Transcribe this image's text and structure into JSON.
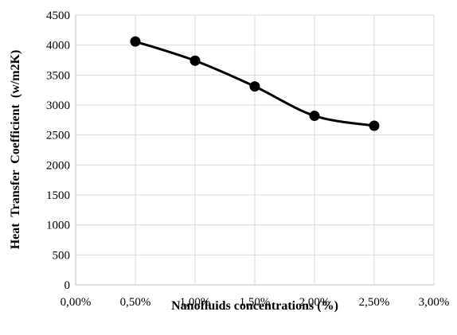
{
  "chart_data": {
    "type": "line",
    "xlabel": "Nanofluids concentrations (%)",
    "ylabel": "Heat  Transfer  Coefficient  (w/m2K)",
    "x_tick_labels": [
      "0,00%",
      "0,50%",
      "1,00%",
      "1,50%",
      "2,00%",
      "2,50%",
      "3,00%"
    ],
    "xlim": [
      0,
      3
    ],
    "ylim": [
      0,
      4500
    ],
    "x_ticks": [
      0,
      0.5,
      1.0,
      1.5,
      2.0,
      2.5,
      3.0
    ],
    "y_ticks": [
      0,
      500,
      1000,
      1500,
      2000,
      2500,
      3000,
      3500,
      4000,
      4500
    ],
    "y_tick_labels": [
      "0",
      "500",
      "1000",
      "1500",
      "2000",
      "2500",
      "3000",
      "3500",
      "4000",
      "4500"
    ],
    "grid": true,
    "smooth": true,
    "series": [
      {
        "x": [
          0.5,
          1.0,
          1.5,
          2.0,
          2.5
        ],
        "values": [
          4060,
          3740,
          3310,
          2820,
          2655
        ],
        "color": "#000000",
        "marker": "circle"
      }
    ]
  }
}
